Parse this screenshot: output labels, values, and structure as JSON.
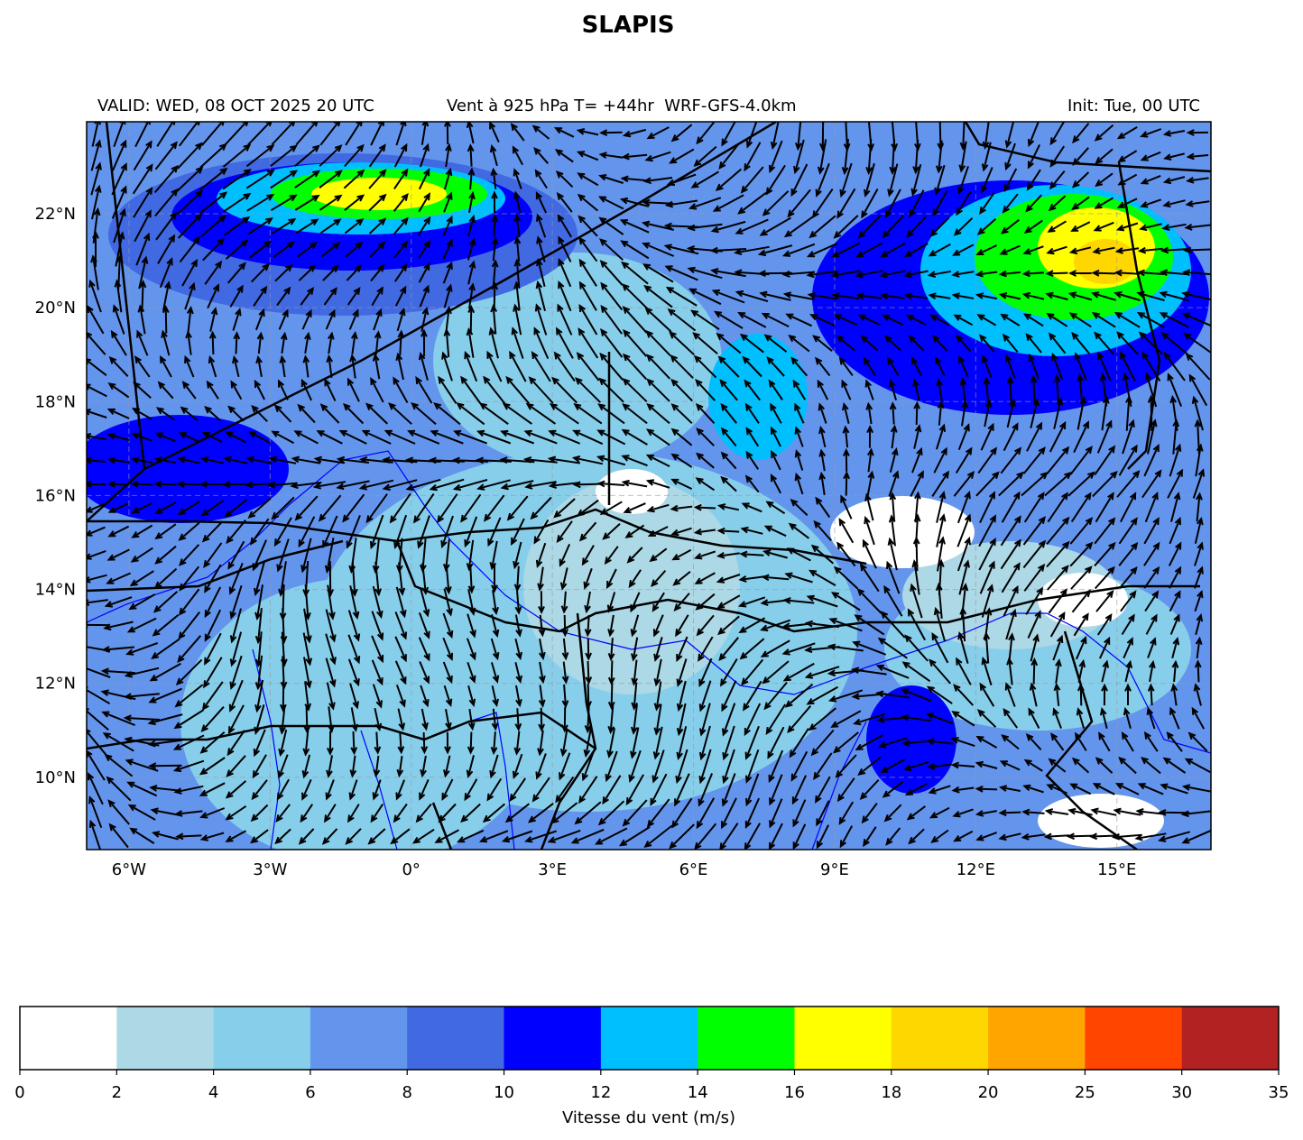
{
  "chart_data": {
    "type": "map",
    "title": "SLAPIS",
    "subtitle_left": "VALID: WED, 08 OCT 2025 20 UTC",
    "subtitle_center": "Vent à 925 hPa T= +44hr  WRF-GFS-4.0km",
    "subtitle_right": "Init: Tue, 00 UTC",
    "xlim": [
      -6.9,
      17
    ],
    "ylim": [
      8.46,
      23.96
    ],
    "xticks": [
      {
        "value": -6,
        "label": "6°W"
      },
      {
        "value": -3,
        "label": "3°W"
      },
      {
        "value": 0,
        "label": "0°"
      },
      {
        "value": 3,
        "label": "3°E"
      },
      {
        "value": 6,
        "label": "6°E"
      },
      {
        "value": 9,
        "label": "9°E"
      },
      {
        "value": 12,
        "label": "12°E"
      },
      {
        "value": 15,
        "label": "15°E"
      }
    ],
    "yticks": [
      {
        "value": 10,
        "label": "10°N"
      },
      {
        "value": 12,
        "label": "12°N"
      },
      {
        "value": 14,
        "label": "14°N"
      },
      {
        "value": 16,
        "label": "16°N"
      },
      {
        "value": 18,
        "label": "18°N"
      },
      {
        "value": 20,
        "label": "20°N"
      },
      {
        "value": 22,
        "label": "22°N"
      }
    ],
    "grid": true,
    "colorbar": {
      "label": "Vitesse du vent (m/s)",
      "bounds": [
        0,
        2,
        4,
        6,
        8,
        10,
        12,
        14,
        16,
        18,
        20,
        25,
        30,
        35
      ],
      "colors": [
        "#ffffff",
        "#add8e6",
        "#87ceeb",
        "#6495ed",
        "#4169e1",
        "#0000ff",
        "#00bfff",
        "#00ff00",
        "#ffff00",
        "#ffd700",
        "#ffa500",
        "#ff4500",
        "#b22222"
      ]
    }
  }
}
